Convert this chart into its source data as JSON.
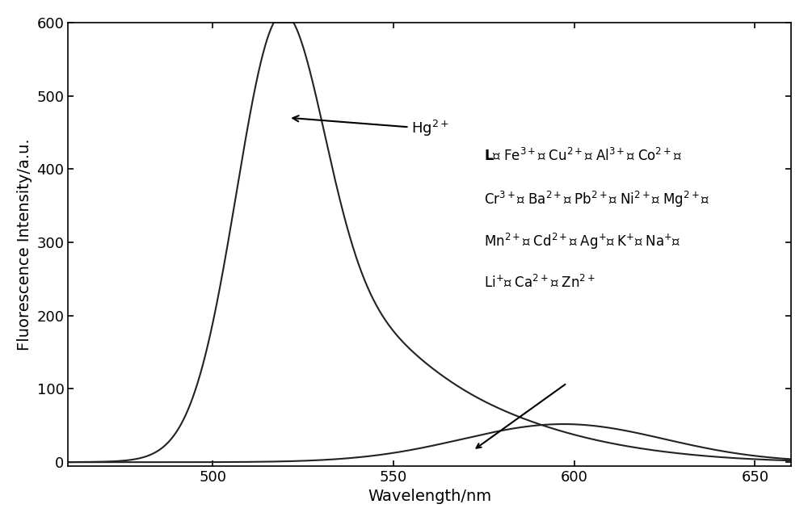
{
  "xlim": [
    460,
    660
  ],
  "ylim": [
    -5,
    600
  ],
  "xlabel": "Wavelength/nm",
  "ylabel": "Fluorescence Intensity/a.u.",
  "xticks": [
    500,
    550,
    600,
    650
  ],
  "xtick_labels": [
    "500",
    "550",
    "600",
    "650"
  ],
  "yticks": [
    0,
    100,
    200,
    300,
    400,
    500,
    600
  ],
  "ytick_labels": [
    "0",
    "100",
    "200",
    "300",
    "400",
    "500",
    "600"
  ],
  "line_color": "#222222",
  "background_color": "#ffffff",
  "label_fontsize": 14,
  "tick_fontsize": 13,
  "annotation_fontsize": 13,
  "ions_fontsize": 12
}
